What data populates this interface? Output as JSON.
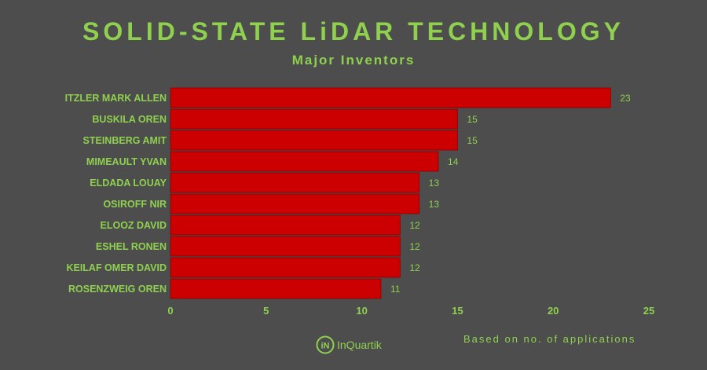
{
  "header": {
    "title": "SOLID-STATE LiDAR TECHNOLOGY",
    "subtitle": "Major Inventors"
  },
  "footer": {
    "note": "Based on no. of applications",
    "logo_text": "InQuartik",
    "logo_mark": "iN"
  },
  "colors": {
    "background": "#4d4d4d",
    "accent": "#8fd14f",
    "bar": "#cc0000",
    "bar_border": "#8c0000"
  },
  "chart_data": {
    "type": "bar",
    "orientation": "horizontal",
    "categories": [
      "ITZLER MARK ALLEN",
      "BUSKILA OREN",
      "STEINBERG AMIT",
      "MIMEAULT YVAN",
      "ELDADA LOUAY",
      "OSIROFF NIR",
      "ELOOZ DAVID",
      "ESHEL RONEN",
      "KEILAF OMER DAVID",
      "ROSENZWEIG OREN"
    ],
    "values": [
      23,
      15,
      15,
      14,
      13,
      13,
      12,
      12,
      12,
      11
    ],
    "xlim": [
      0,
      25
    ],
    "xticks": [
      0,
      5,
      10,
      15,
      20,
      25
    ],
    "grid": false,
    "legend": "none"
  }
}
